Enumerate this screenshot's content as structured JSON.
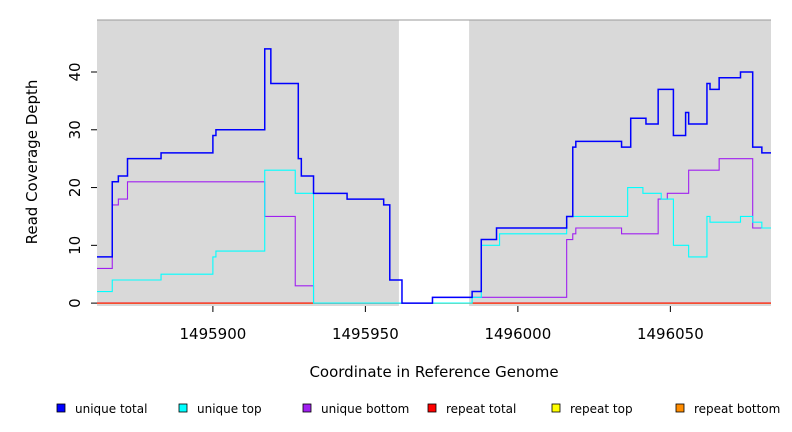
{
  "chart_data": {
    "type": "line",
    "step": true,
    "xlabel": "Coordinate in Reference Genome",
    "ylabel": "Read Coverage Depth",
    "xlim": [
      1495862,
      1496083
    ],
    "ylim": [
      -0.5,
      49
    ],
    "x_ticks": [
      1495900,
      1495950,
      1496000,
      1496050
    ],
    "x_tick_labels": [
      "1495900",
      "1495950",
      "1496000",
      "1496050"
    ],
    "y_ticks": [
      0,
      10,
      20,
      30,
      40
    ],
    "y_tick_labels": [
      "0",
      "10",
      "20",
      "30",
      "40"
    ],
    "shaded_regions": [
      {
        "x0": 1495862,
        "x1": 1495961
      },
      {
        "x0": 1495984,
        "x1": 1496083
      }
    ],
    "colors": {
      "panel": "#d9d9d9",
      "unique_total": "#0000ff",
      "unique_top": "#00ffff",
      "unique_bottom": "#a020f0",
      "repeat_total": "#ff0000",
      "repeat_top": "#ffff00",
      "repeat_bottom": "#ff8c00"
    },
    "series": [
      {
        "name": "unique total",
        "color": "#0000ff",
        "points": [
          [
            1495862,
            8
          ],
          [
            1495867,
            21
          ],
          [
            1495869,
            22
          ],
          [
            1495872,
            25
          ],
          [
            1495883,
            26
          ],
          [
            1495900,
            29
          ],
          [
            1495901,
            30
          ],
          [
            1495917,
            44
          ],
          [
            1495919,
            38
          ],
          [
            1495928,
            25
          ],
          [
            1495929,
            22
          ],
          [
            1495933,
            19
          ],
          [
            1495944,
            18
          ],
          [
            1495956,
            17
          ],
          [
            1495958,
            4
          ],
          [
            1495962,
            0
          ],
          [
            1495972,
            1
          ],
          [
            1495985,
            2
          ],
          [
            1495988,
            11
          ],
          [
            1495993,
            13
          ],
          [
            1496016,
            15
          ],
          [
            1496018,
            27
          ],
          [
            1496019,
            28
          ],
          [
            1496034,
            27
          ],
          [
            1496037,
            32
          ],
          [
            1496042,
            31
          ],
          [
            1496046,
            37
          ],
          [
            1496051,
            29
          ],
          [
            1496055,
            33
          ],
          [
            1496056,
            31
          ],
          [
            1496062,
            38
          ],
          [
            1496063,
            37
          ],
          [
            1496066,
            39
          ],
          [
            1496073,
            40
          ],
          [
            1496077,
            27
          ],
          [
            1496080,
            26
          ],
          [
            1496083,
            26
          ]
        ]
      },
      {
        "name": "unique top",
        "color": "#00ffff",
        "points": [
          [
            1495862,
            2
          ],
          [
            1495867,
            4
          ],
          [
            1495883,
            5
          ],
          [
            1495900,
            8
          ],
          [
            1495901,
            9
          ],
          [
            1495917,
            23
          ],
          [
            1495927,
            19
          ],
          [
            1495933,
            0
          ],
          [
            1495985,
            1
          ],
          [
            1495988,
            10
          ],
          [
            1495994,
            12
          ],
          [
            1496016,
            15
          ],
          [
            1496036,
            20
          ],
          [
            1496041,
            19
          ],
          [
            1496047,
            18
          ],
          [
            1496051,
            10
          ],
          [
            1496056,
            8
          ],
          [
            1496062,
            15
          ],
          [
            1496063,
            14
          ],
          [
            1496073,
            15
          ],
          [
            1496077,
            14
          ],
          [
            1496080,
            13
          ],
          [
            1496083,
            13
          ]
        ]
      },
      {
        "name": "unique bottom",
        "color": "#a020f0",
        "points": [
          [
            1495862,
            6
          ],
          [
            1495867,
            17
          ],
          [
            1495869,
            18
          ],
          [
            1495872,
            21
          ],
          [
            1495917,
            15
          ],
          [
            1495927,
            3
          ],
          [
            1495933,
            0
          ],
          [
            1495972,
            1
          ],
          [
            1496016,
            11
          ],
          [
            1496018,
            12
          ],
          [
            1496019,
            13
          ],
          [
            1496034,
            12
          ],
          [
            1496046,
            18
          ],
          [
            1496049,
            19
          ],
          [
            1496056,
            23
          ],
          [
            1496066,
            25
          ],
          [
            1496077,
            13
          ],
          [
            1496083,
            13
          ]
        ]
      },
      {
        "name": "repeat total",
        "color": "#ff0000",
        "points": [
          [
            1495862,
            0
          ],
          [
            1496083,
            0
          ]
        ]
      },
      {
        "name": "repeat top",
        "color": "#ffff00",
        "points": [
          [
            1495862,
            0
          ],
          [
            1496083,
            0
          ]
        ]
      },
      {
        "name": "repeat bottom",
        "color": "#ff8c00",
        "points": [
          [
            1495862,
            0
          ],
          [
            1496083,
            0
          ]
        ]
      }
    ],
    "legend": {
      "placement": "bottom",
      "entries": [
        "unique total",
        "unique top",
        "unique bottom",
        "repeat total",
        "repeat top",
        "repeat bottom"
      ]
    }
  }
}
